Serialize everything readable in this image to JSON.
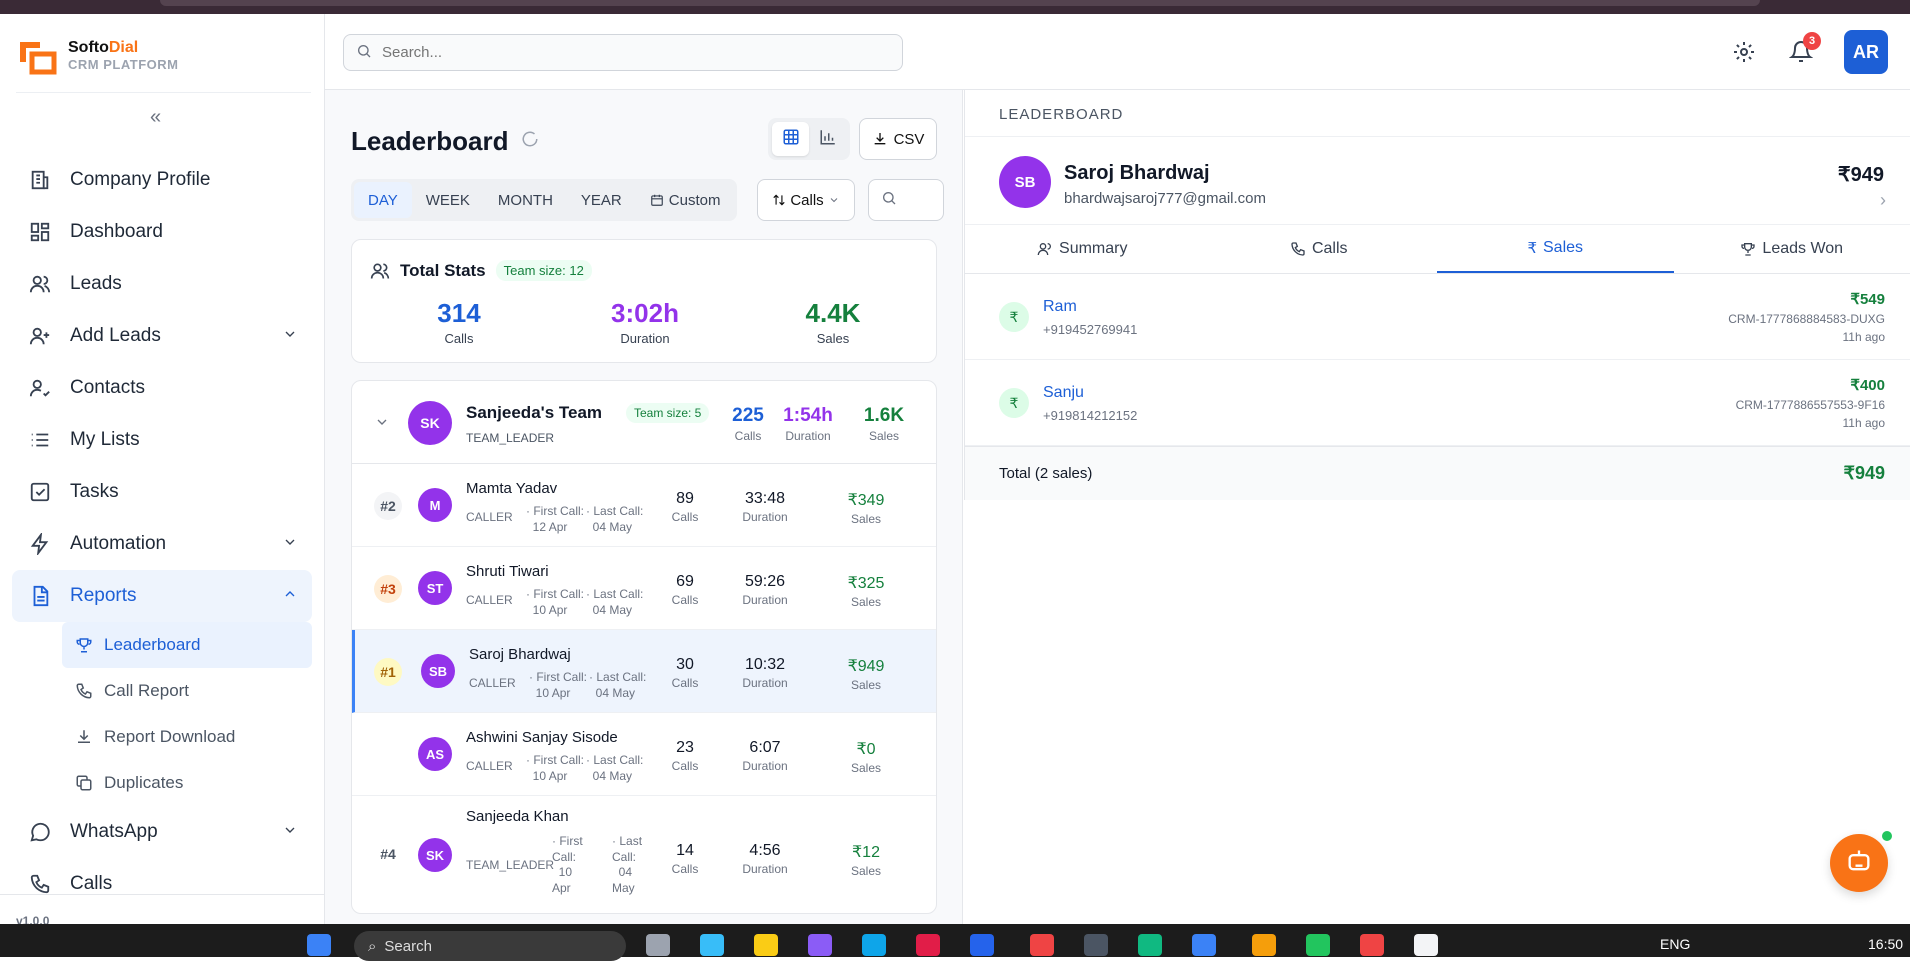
{
  "app": {
    "brand_name_1": "Softo",
    "brand_name_2": "Dial",
    "brand_sub": "CRM PLATFORM",
    "version": "v1.0.0"
  },
  "header": {
    "search_placeholder": "Search...",
    "notification_count": "3",
    "user_initials": "AR"
  },
  "sidebar": {
    "items": [
      {
        "label": "Company Profile",
        "icon": "building-icon"
      },
      {
        "label": "Dashboard",
        "icon": "grid-icon"
      },
      {
        "label": "Leads",
        "icon": "users-icon"
      },
      {
        "label": "Add Leads",
        "icon": "user-plus-icon"
      },
      {
        "label": "Contacts",
        "icon": "contact-icon"
      },
      {
        "label": "My Lists",
        "icon": "list-icon"
      },
      {
        "label": "Tasks",
        "icon": "checkbox-icon"
      },
      {
        "label": "Automation",
        "icon": "bolt-icon"
      },
      {
        "label": "Reports",
        "icon": "report-icon"
      },
      {
        "label": "WhatsApp",
        "icon": "whatsapp-icon"
      },
      {
        "label": "Calls",
        "icon": "phone-icon"
      }
    ],
    "reports_sub": [
      {
        "label": "Leaderboard",
        "icon": "trophy-icon"
      },
      {
        "label": "Call Report",
        "icon": "phone-icon"
      },
      {
        "label": "Report Download",
        "icon": "download-icon"
      },
      {
        "label": "Duplicates",
        "icon": "copy-icon"
      }
    ]
  },
  "leaderboard": {
    "title": "Leaderboard",
    "csv_label": "CSV",
    "periods": [
      "DAY",
      "WEEK",
      "MONTH",
      "YEAR",
      "Custom"
    ],
    "selected_period": "DAY",
    "metric": "Calls",
    "total_stats": {
      "title": "Total Stats",
      "team_size": "Team size: 12",
      "calls": "314",
      "calls_label": "Calls",
      "duration": "3:02h",
      "duration_label": "Duration",
      "sales": "4.4K",
      "sales_label": "Sales"
    },
    "team": {
      "initials": "SK",
      "name": "Sanjeeda's Team",
      "team_size": "Team size: 5",
      "role": "TEAM_LEADER",
      "calls": "225",
      "duration": "1:54h",
      "sales": "1.6K",
      "calls_label": "Calls",
      "duration_label": "Duration",
      "sales_label": "Sales"
    },
    "members": [
      {
        "rank": "#2",
        "initials": "M",
        "name": "Mamta Yadav",
        "role": "CALLER",
        "first_call_label": "First Call:",
        "first_call": "12 Apr",
        "last_call_label": "Last Call:",
        "last_call": "04 May",
        "calls": "89",
        "duration": "33:48",
        "sales": "₹349"
      },
      {
        "rank": "#3",
        "initials": "ST",
        "name": "Shruti Tiwari",
        "role": "CALLER",
        "first_call_label": "First Call:",
        "first_call": "10 Apr",
        "last_call_label": "Last Call:",
        "last_call": "04 May",
        "calls": "69",
        "duration": "59:26",
        "sales": "₹325"
      },
      {
        "rank": "#1",
        "initials": "SB",
        "name": "Saroj Bhardwaj",
        "role": "CALLER",
        "first_call_label": "First Call:",
        "first_call": "10 Apr",
        "last_call_label": "Last Call:",
        "last_call": "04 May",
        "calls": "30",
        "duration": "10:32",
        "sales": "₹949"
      },
      {
        "rank": "",
        "initials": "AS",
        "name": "Ashwini Sanjay Sisode",
        "role": "CALLER",
        "first_call_label": "First Call:",
        "first_call": "10 Apr",
        "last_call_label": "Last Call:",
        "last_call": "04 May",
        "calls": "23",
        "duration": "6:07",
        "sales": "₹0"
      },
      {
        "rank": "#4",
        "initials": "SK",
        "name": "Sanjeeda Khan",
        "role": "TEAM_LEADER",
        "first_call_label": "First Call:",
        "first_call": "10 Apr",
        "last_call_label": "Last Call:",
        "last_call": "04 May",
        "calls": "14",
        "duration": "4:56",
        "sales": "₹12"
      }
    ],
    "col_labels": {
      "calls": "Calls",
      "duration": "Duration",
      "sales": "Sales"
    }
  },
  "detail": {
    "section_label": "LEADERBOARD",
    "initials": "SB",
    "name": "Saroj Bhardwaj",
    "email": "bhardwajsaroj777@gmail.com",
    "amount": "₹949",
    "tabs": [
      "Summary",
      "Calls",
      "Sales",
      "Leads Won"
    ],
    "active_tab": "Sales",
    "sales": [
      {
        "name": "Ram",
        "phone": "+919452769941",
        "amount": "₹549",
        "id": "CRM-1777868884583-DUXG",
        "ago": "11h ago"
      },
      {
        "name": "Sanju",
        "phone": "+919814212152",
        "amount": "₹400",
        "id": "CRM-1777886557553-9F16",
        "ago": "11h ago"
      }
    ],
    "total_label": "Total (2 sales)",
    "total_amount": "₹949"
  },
  "taskbar": {
    "search": "Search",
    "lang": "ENG",
    "time": "16:50"
  },
  "colors": {
    "primary": "#1d5fd6",
    "accent": "#f97316",
    "success": "#15803d",
    "purple": "#9333ea"
  }
}
